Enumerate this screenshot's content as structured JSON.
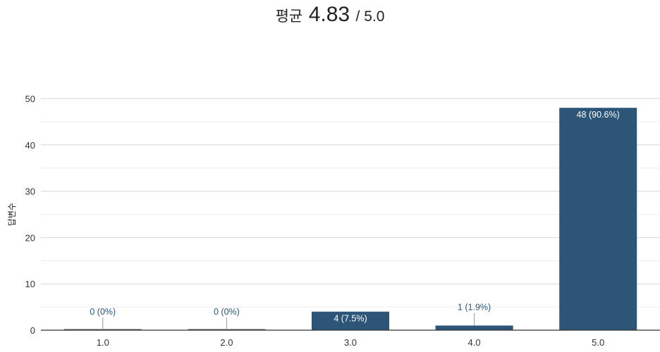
{
  "header": {
    "label": "평균",
    "average": "4.83",
    "max": "/ 5.0"
  },
  "chart_data": {
    "type": "bar",
    "title": "",
    "xlabel": "",
    "ylabel": "답변수",
    "ylim": [
      0,
      50
    ],
    "yticks": [
      0,
      10,
      20,
      30,
      40,
      50
    ],
    "grid": true,
    "categories": [
      "1.0",
      "2.0",
      "3.0",
      "4.0",
      "5.0"
    ],
    "values": [
      0,
      0,
      4,
      1,
      48
    ],
    "data_labels": [
      "0 (0%)",
      "0 (0%)",
      "4 (7.5%)",
      "1 (1.9%)",
      "48 (90.6%)"
    ],
    "bar_color": "#2c5578",
    "label_color": "#2c5578"
  }
}
